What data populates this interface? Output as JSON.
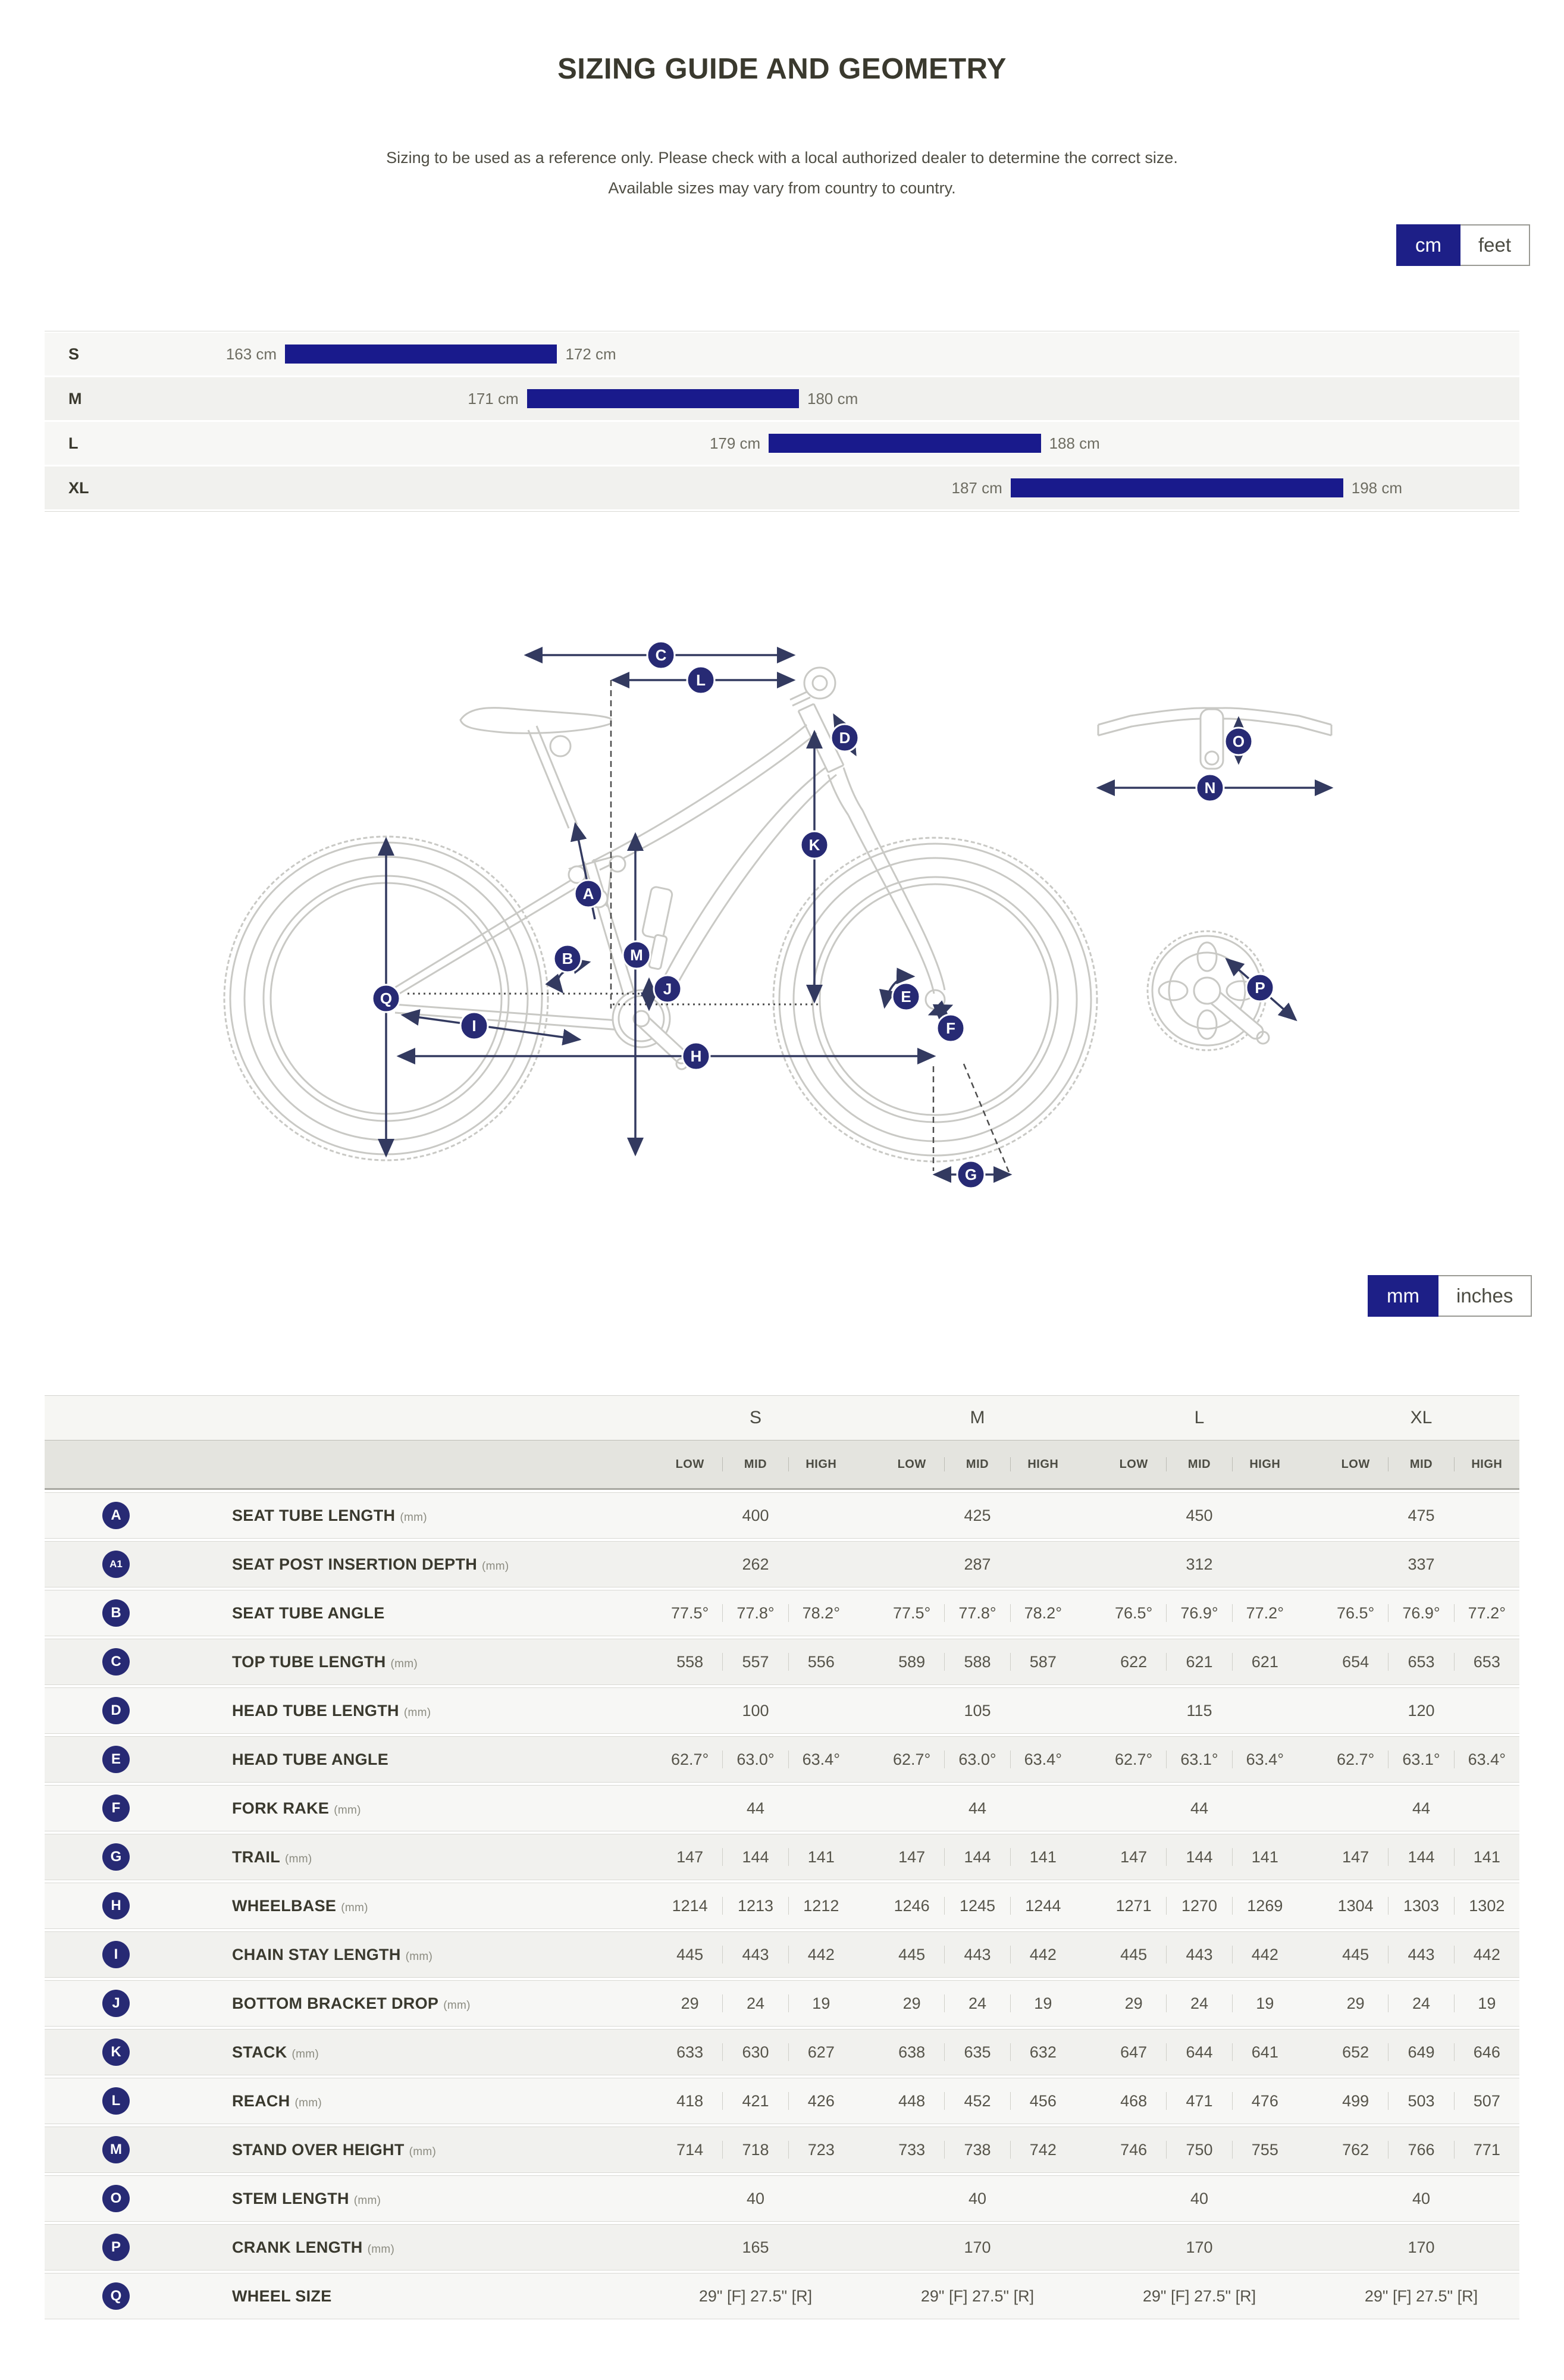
{
  "page": {
    "title": "SIZING GUIDE AND GEOMETRY",
    "subtitle1": "Sizing to be used as a reference only. Please check with a local authorized dealer to determine the correct size.",
    "subtitle2": "Available sizes may vary from country to country."
  },
  "unit_toggles": {
    "height": {
      "options": [
        "cm",
        "feet"
      ],
      "selected": "cm"
    },
    "geometry": {
      "options": [
        "mm",
        "inches"
      ],
      "selected": "mm"
    }
  },
  "sizing_chart": {
    "unit": "cm",
    "min_cm": 163,
    "max_cm": 198,
    "rows": [
      {
        "size": "S",
        "from": 163,
        "to": 172,
        "from_label": "163 cm",
        "to_label": "172 cm"
      },
      {
        "size": "M",
        "from": 171,
        "to": 180,
        "from_label": "171 cm",
        "to_label": "180 cm"
      },
      {
        "size": "L",
        "from": 179,
        "to": 188,
        "from_label": "179 cm",
        "to_label": "188 cm"
      },
      {
        "size": "XL",
        "from": 187,
        "to": 198,
        "from_label": "187 cm",
        "to_label": "198 cm"
      }
    ]
  },
  "diagram": {
    "markers": [
      "A",
      "B",
      "C",
      "D",
      "E",
      "F",
      "G",
      "H",
      "I",
      "J",
      "K",
      "L",
      "M",
      "N",
      "O",
      "P",
      "Q"
    ]
  },
  "geometry_table": {
    "size_headers": [
      "S",
      "M",
      "L",
      "XL"
    ],
    "position_headers": [
      "LOW",
      "MID",
      "HIGH"
    ],
    "rows": [
      {
        "marker": "A",
        "label": "SEAT TUBE LENGTH",
        "unit": "(mm)",
        "type": "single",
        "values": [
          "400",
          "425",
          "450",
          "475"
        ]
      },
      {
        "marker": "A1",
        "label": "SEAT POST INSERTION DEPTH",
        "unit": "(mm)",
        "type": "single",
        "values": [
          "262",
          "287",
          "312",
          "337"
        ]
      },
      {
        "marker": "B",
        "label": "SEAT TUBE ANGLE",
        "unit": "",
        "type": "triple",
        "values": [
          [
            "77.5°",
            "77.8°",
            "78.2°"
          ],
          [
            "77.5°",
            "77.8°",
            "78.2°"
          ],
          [
            "76.5°",
            "76.9°",
            "77.2°"
          ],
          [
            "76.5°",
            "76.9°",
            "77.2°"
          ]
        ]
      },
      {
        "marker": "C",
        "label": "TOP TUBE LENGTH",
        "unit": "(mm)",
        "type": "triple",
        "values": [
          [
            "558",
            "557",
            "556"
          ],
          [
            "589",
            "588",
            "587"
          ],
          [
            "622",
            "621",
            "621"
          ],
          [
            "654",
            "653",
            "653"
          ]
        ]
      },
      {
        "marker": "D",
        "label": "HEAD TUBE LENGTH",
        "unit": "(mm)",
        "type": "single",
        "values": [
          "100",
          "105",
          "115",
          "120"
        ]
      },
      {
        "marker": "E",
        "label": "HEAD TUBE ANGLE",
        "unit": "",
        "type": "triple",
        "values": [
          [
            "62.7°",
            "63.0°",
            "63.4°"
          ],
          [
            "62.7°",
            "63.0°",
            "63.4°"
          ],
          [
            "62.7°",
            "63.1°",
            "63.4°"
          ],
          [
            "62.7°",
            "63.1°",
            "63.4°"
          ]
        ]
      },
      {
        "marker": "F",
        "label": "FORK RAKE",
        "unit": "(mm)",
        "type": "single",
        "values": [
          "44",
          "44",
          "44",
          "44"
        ]
      },
      {
        "marker": "G",
        "label": "TRAIL",
        "unit": "(mm)",
        "type": "triple",
        "values": [
          [
            "147",
            "144",
            "141"
          ],
          [
            "147",
            "144",
            "141"
          ],
          [
            "147",
            "144",
            "141"
          ],
          [
            "147",
            "144",
            "141"
          ]
        ]
      },
      {
        "marker": "H",
        "label": "WHEELBASE",
        "unit": "(mm)",
        "type": "triple",
        "values": [
          [
            "1214",
            "1213",
            "1212"
          ],
          [
            "1246",
            "1245",
            "1244"
          ],
          [
            "1271",
            "1270",
            "1269"
          ],
          [
            "1304",
            "1303",
            "1302"
          ]
        ]
      },
      {
        "marker": "I",
        "label": "CHAIN STAY LENGTH",
        "unit": "(mm)",
        "type": "triple",
        "values": [
          [
            "445",
            "443",
            "442"
          ],
          [
            "445",
            "443",
            "442"
          ],
          [
            "445",
            "443",
            "442"
          ],
          [
            "445",
            "443",
            "442"
          ]
        ]
      },
      {
        "marker": "J",
        "label": "BOTTOM BRACKET DROP",
        "unit": "(mm)",
        "type": "triple",
        "values": [
          [
            "29",
            "24",
            "19"
          ],
          [
            "29",
            "24",
            "19"
          ],
          [
            "29",
            "24",
            "19"
          ],
          [
            "29",
            "24",
            "19"
          ]
        ]
      },
      {
        "marker": "K",
        "label": "STACK",
        "unit": "(mm)",
        "type": "triple",
        "values": [
          [
            "633",
            "630",
            "627"
          ],
          [
            "638",
            "635",
            "632"
          ],
          [
            "647",
            "644",
            "641"
          ],
          [
            "652",
            "649",
            "646"
          ]
        ]
      },
      {
        "marker": "L",
        "label": "REACH",
        "unit": "(mm)",
        "type": "triple",
        "values": [
          [
            "418",
            "421",
            "426"
          ],
          [
            "448",
            "452",
            "456"
          ],
          [
            "468",
            "471",
            "476"
          ],
          [
            "499",
            "503",
            "507"
          ]
        ]
      },
      {
        "marker": "M",
        "label": "STAND OVER HEIGHT",
        "unit": "(mm)",
        "type": "triple",
        "values": [
          [
            "714",
            "718",
            "723"
          ],
          [
            "733",
            "738",
            "742"
          ],
          [
            "746",
            "750",
            "755"
          ],
          [
            "762",
            "766",
            "771"
          ]
        ]
      },
      {
        "marker": "O",
        "label": "STEM LENGTH",
        "unit": "(mm)",
        "type": "single",
        "values": [
          "40",
          "40",
          "40",
          "40"
        ]
      },
      {
        "marker": "P",
        "label": "CRANK LENGTH",
        "unit": "(mm)",
        "type": "single",
        "values": [
          "165",
          "170",
          "170",
          "170"
        ]
      },
      {
        "marker": "Q",
        "label": "WHEEL SIZE",
        "unit": "",
        "type": "single",
        "values": [
          "29\" [F] 27.5\" [R]",
          "29\" [F] 27.5\" [R]",
          "29\" [F] 27.5\" [R]",
          "29\" [F] 27.5\" [R]"
        ]
      }
    ]
  },
  "colors": {
    "text_dark": "#3a392e",
    "text_mid": "#4f4e44",
    "accent_navy": "#1d1f87",
    "marker_navy": "#272a74",
    "bar_navy": "#191a8c",
    "arrow_navy": "#333a60",
    "row_light": "#f7f7f5",
    "row_alt": "#f1f1ee",
    "header_gray": "#e4e4df",
    "outline_gray": "#c9c9c5",
    "value_text": "#56544a"
  }
}
